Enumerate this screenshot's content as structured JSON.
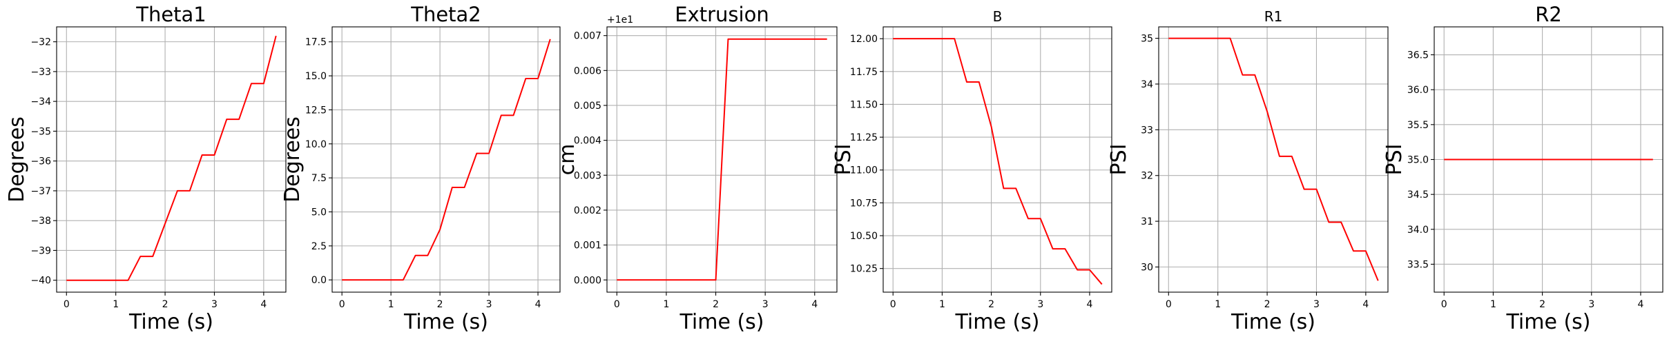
{
  "chart_data": [
    {
      "type": "line",
      "title": "Theta1",
      "xlabel": "Time (s)",
      "ylabel": "Degrees",
      "offset_text": "",
      "grid": true,
      "xlim": [
        -0.2,
        4.45
      ],
      "ylim": [
        -40.4,
        -31.5
      ],
      "xticks": [
        0,
        1,
        2,
        3,
        4
      ],
      "yticks": [
        -40,
        -39,
        -38,
        -37,
        -36,
        -35,
        -34,
        -33,
        -32
      ],
      "ytick_labels": [
        "−40",
        "−39",
        "−38",
        "−37",
        "−36",
        "−35",
        "−34",
        "−33",
        "−32"
      ],
      "color": "#ff0000",
      "x": [
        0,
        1.25,
        1.5,
        1.75,
        2.0,
        2.25,
        2.5,
        2.75,
        3.0,
        3.25,
        3.5,
        3.75,
        4.0,
        4.25
      ],
      "y": [
        -40,
        -40,
        -39.2,
        -39.2,
        -38.1,
        -37,
        -37,
        -35.8,
        -35.8,
        -34.6,
        -34.6,
        -33.4,
        -33.4,
        -31.8
      ]
    },
    {
      "type": "line",
      "title": "Theta2",
      "xlabel": "Time (s)",
      "ylabel": "Degrees",
      "offset_text": "",
      "grid": true,
      "xlim": [
        -0.2,
        4.45
      ],
      "ylim": [
        -0.9,
        18.6
      ],
      "xticks": [
        0,
        1,
        2,
        3,
        4
      ],
      "yticks": [
        0,
        2.5,
        5,
        7.5,
        10,
        12.5,
        15,
        17.5
      ],
      "ytick_labels": [
        "0.0",
        "2.5",
        "5.0",
        "7.5",
        "10.0",
        "12.5",
        "15.0",
        "17.5"
      ],
      "color": "#ff0000",
      "x": [
        0,
        1.25,
        1.5,
        1.75,
        2.0,
        2.25,
        2.5,
        2.75,
        3.0,
        3.25,
        3.5,
        3.75,
        4.0,
        4.25
      ],
      "y": [
        0,
        0,
        1.8,
        1.8,
        3.7,
        6.8,
        6.8,
        9.3,
        9.3,
        12.1,
        12.1,
        14.8,
        14.8,
        17.7
      ]
    },
    {
      "type": "line",
      "title": "Extrusion",
      "xlabel": "Time (s)",
      "ylabel": "cm",
      "offset_text": "+1e1",
      "grid": true,
      "xlim": [
        -0.2,
        4.45
      ],
      "ylim": [
        -0.00035,
        0.00725
      ],
      "xticks": [
        0,
        1,
        2,
        3,
        4
      ],
      "yticks": [
        0,
        0.001,
        0.002,
        0.003,
        0.004,
        0.005,
        0.006,
        0.007
      ],
      "ytick_labels": [
        "0.000",
        "0.001",
        "0.002",
        "0.003",
        "0.004",
        "0.005",
        "0.006",
        "0.007"
      ],
      "color": "#ff0000",
      "x": [
        0,
        2.0,
        2.25,
        4.25
      ],
      "y": [
        0,
        0,
        0.0069,
        0.0069
      ]
    },
    {
      "type": "line",
      "title": "B",
      "xlabel": "Time (s)",
      "ylabel": "PSI",
      "offset_text": "",
      "grid": true,
      "xlim": [
        -0.2,
        4.45
      ],
      "ylim": [
        10.07,
        12.09
      ],
      "xticks": [
        0,
        1,
        2,
        3,
        4
      ],
      "yticks": [
        10.25,
        10.5,
        10.75,
        11,
        11.25,
        11.5,
        11.75,
        12
      ],
      "ytick_labels": [
        "10.25",
        "10.50",
        "10.75",
        "11.00",
        "11.25",
        "11.50",
        "11.75",
        "12.00"
      ],
      "color": "#ff0000",
      "x": [
        0,
        1.25,
        1.5,
        1.75,
        2.0,
        2.25,
        2.5,
        2.75,
        3.0,
        3.25,
        3.5,
        3.75,
        4.0,
        4.25
      ],
      "y": [
        12,
        12,
        11.67,
        11.67,
        11.33,
        10.86,
        10.86,
        10.63,
        10.63,
        10.4,
        10.4,
        10.24,
        10.24,
        10.13
      ]
    },
    {
      "type": "line",
      "title": "R1",
      "xlabel": "Time (s)",
      "ylabel": "PSI",
      "offset_text": "",
      "grid": true,
      "xlim": [
        -0.2,
        4.45
      ],
      "ylim": [
        29.45,
        35.25
      ],
      "xticks": [
        0,
        1,
        2,
        3,
        4
      ],
      "yticks": [
        30,
        31,
        32,
        33,
        34,
        35
      ],
      "ytick_labels": [
        "30",
        "31",
        "32",
        "33",
        "34",
        "35"
      ],
      "color": "#ff0000",
      "x": [
        0,
        1.25,
        1.5,
        1.75,
        2.0,
        2.25,
        2.5,
        2.75,
        3.0,
        3.25,
        3.5,
        3.75,
        4.0,
        4.25
      ],
      "y": [
        35,
        35,
        34.2,
        34.2,
        33.4,
        32.42,
        32.42,
        31.7,
        31.7,
        30.98,
        30.98,
        30.35,
        30.35,
        29.7
      ]
    },
    {
      "type": "line",
      "title": "R2",
      "xlabel": "Time (s)",
      "ylabel": "PSI",
      "offset_text": "",
      "grid": true,
      "xlim": [
        -0.2,
        4.45
      ],
      "ylim": [
        33.1,
        36.9
      ],
      "xticks": [
        0,
        1,
        2,
        3,
        4
      ],
      "yticks": [
        33.5,
        34,
        34.5,
        35,
        35.5,
        36,
        36.5
      ],
      "ytick_labels": [
        "33.5",
        "34.0",
        "34.5",
        "35.0",
        "35.5",
        "36.0",
        "36.5"
      ],
      "color": "#ff0000",
      "x": [
        0,
        4.25
      ],
      "y": [
        35,
        35
      ]
    }
  ]
}
